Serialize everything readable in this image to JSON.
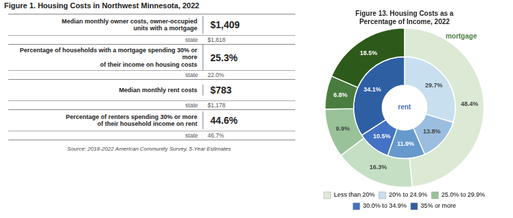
{
  "chart_data": [
    {
      "type": "table",
      "title": "Figure 1. Housing Costs in Northwest Minnesota, 2022",
      "categories": [
        "Median monthly owner costs, owner-occupied\nunits with a mortgage",
        "Percentage of households with a mortgage spending 30% or more\nof their income on housing costs",
        "Median monthly rent costs",
        "Percentage of renters spending 30% or more\nof their household income on rent"
      ],
      "series": [
        {
          "values": [
            1409,
            25.3,
            783,
            44.6
          ],
          "value_labels": [
            "$1,409",
            "25.3%",
            "$783",
            "44.6%"
          ]
        },
        {
          "name": "state",
          "values": [
            1818,
            22.0,
            1178,
            46.7
          ],
          "value_labels": [
            "$1,818",
            "22.0%",
            "$1,178",
            "46.7%"
          ]
        }
      ],
      "annotations": [
        "Source: 2018-2022 American Community Survey, 5-Year Estimates"
      ]
    },
    {
      "type": "doughnut",
      "title": "Figure 13. Housing Costs as a\nPercentage of Income, 2022",
      "categories": [
        "Less than 20%",
        "20% to 24.9%",
        "25.0% to 29.9%",
        "30.0% to 34.9%",
        "35% or more"
      ],
      "colors": [
        "#dce9d5",
        "#c8dff0",
        "#99c299",
        "#4472c4",
        "#2e5fa3"
      ],
      "series": [
        {
          "name": "mortgage",
          "values": [
            48.4,
            16.3,
            9.9,
            6.8,
            18.5
          ],
          "colors": [
            "#dce9d5",
            "#c5dfc5",
            "#99c299",
            "#4a7c3f",
            "#2d5a1b"
          ],
          "value_labels": [
            "48.4%",
            "16.3%",
            "9.9%",
            "6.8%",
            "18.5%"
          ]
        },
        {
          "name": "rent",
          "values": [
            29.7,
            13.8,
            11.9,
            10.5,
            34.1
          ],
          "colors": [
            "#c8dff0",
            "#9bbde0",
            "#6699cc",
            "#4472c4",
            "#2e5fa3"
          ],
          "value_labels": [
            "29.7%",
            "13.8%",
            "11.9%",
            "10.5%",
            "34.1%"
          ]
        }
      ],
      "legend": "bottom",
      "data_labels": true
    }
  ]
}
